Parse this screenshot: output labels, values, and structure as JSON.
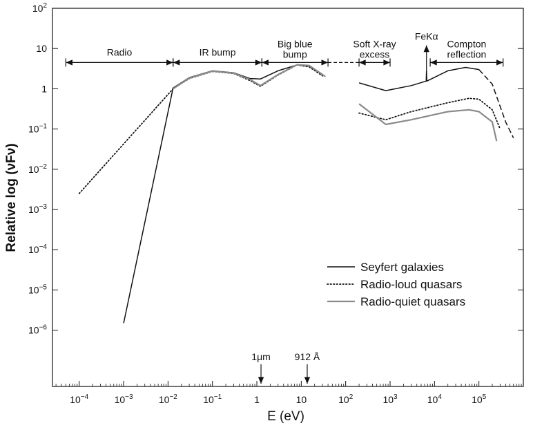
{
  "chart_data": {
    "type": "line",
    "xlabel": "E (eV)",
    "ylabel": "Relative log (νFν)",
    "xscale": "log",
    "yscale": "log",
    "xlim": [
      2.5e-05,
      1000000
    ],
    "ylim": [
      4e-08,
      100
    ],
    "grid": false,
    "legend_position": "bottom-right",
    "x_ticks": [
      {
        "value": 0.0001,
        "label": "10",
        "exp": "−4"
      },
      {
        "value": 0.001,
        "label": "10",
        "exp": "−3"
      },
      {
        "value": 0.01,
        "label": "10",
        "exp": "−2"
      },
      {
        "value": 0.1,
        "label": "10",
        "exp": "−1"
      },
      {
        "value": 1,
        "label": "1",
        "exp": ""
      },
      {
        "value": 10,
        "label": "10",
        "exp": ""
      },
      {
        "value": 100,
        "label": "10",
        "exp": "2"
      },
      {
        "value": 1000,
        "label": "10",
        "exp": "3"
      },
      {
        "value": 10000,
        "label": "10",
        "exp": "4"
      },
      {
        "value": 100000,
        "label": "10",
        "exp": "5"
      }
    ],
    "y_ticks": [
      {
        "value": 100,
        "label": "10",
        "exp": "2"
      },
      {
        "value": 10,
        "label": "10",
        "exp": ""
      },
      {
        "value": 1,
        "label": "1",
        "exp": ""
      },
      {
        "value": 0.1,
        "label": "10",
        "exp": "−1"
      },
      {
        "value": 0.01,
        "label": "10",
        "exp": "−2"
      },
      {
        "value": 0.001,
        "label": "10",
        "exp": "−3"
      },
      {
        "value": 0.0001,
        "label": "10",
        "exp": "−4"
      },
      {
        "value": 1e-05,
        "label": "10",
        "exp": "−5"
      },
      {
        "value": 1e-06,
        "label": "10",
        "exp": "−6"
      }
    ],
    "series": [
      {
        "name": "Seyfert galaxies",
        "style": "solid",
        "color": "#111111",
        "segments": [
          [
            [
              0.001,
              1.5e-06
            ],
            [
              0.013,
              1.05
            ],
            [
              0.03,
              1.9
            ],
            [
              0.1,
              2.8
            ],
            [
              0.3,
              2.5
            ],
            [
              0.7,
              1.8
            ],
            [
              1.2,
              1.75
            ],
            [
              3,
              2.8
            ],
            [
              8,
              3.9
            ],
            [
              15,
              3.7
            ],
            [
              30,
              2.3
            ]
          ],
          [
            [
              200,
              1.4
            ],
            [
              800,
              0.9
            ],
            [
              3000,
              1.2
            ],
            [
              6500,
              1.55
            ],
            [
              6600,
              2.8
            ],
            [
              6700,
              1.55
            ],
            [
              20000,
              2.8
            ],
            [
              50000,
              3.4
            ],
            [
              100000,
              3.0
            ]
          ],
          [
            [
              100000,
              3.0
            ],
            [
              200000,
              1.3
            ],
            [
              400000,
              0.15
            ],
            [
              600000,
              0.06
            ]
          ]
        ]
      },
      {
        "name": "Radio-loud quasars",
        "style": "dotted",
        "color": "#111111",
        "segments": [
          [
            [
              0.0001,
              0.0025
            ],
            [
              0.013,
              1.0
            ]
          ],
          [
            [
              0.013,
              1.0
            ],
            [
              0.03,
              1.8
            ],
            [
              0.1,
              2.7
            ],
            [
              0.3,
              2.4
            ],
            [
              0.7,
              1.6
            ],
            [
              1.2,
              1.15
            ],
            [
              3,
              2.2
            ],
            [
              8,
              3.9
            ],
            [
              15,
              3.5
            ],
            [
              30,
              2.1
            ]
          ],
          [
            [
              200,
              0.25
            ],
            [
              800,
              0.17
            ],
            [
              3000,
              0.27
            ],
            [
              20000,
              0.45
            ],
            [
              60000,
              0.58
            ],
            [
              100000,
              0.55
            ],
            [
              200000,
              0.3
            ],
            [
              300000,
              0.1
            ]
          ]
        ]
      },
      {
        "name": "Radio-quiet quasars",
        "style": "solid-gray",
        "color": "#8a8a8a",
        "segments": [
          [
            [
              0.013,
              1.0
            ],
            [
              0.03,
              1.85
            ],
            [
              0.1,
              2.75
            ],
            [
              0.3,
              2.45
            ],
            [
              0.7,
              1.7
            ],
            [
              1.2,
              1.2
            ],
            [
              3,
              2.25
            ],
            [
              8,
              3.95
            ],
            [
              15,
              3.8
            ],
            [
              35,
              2.0
            ]
          ],
          [
            [
              200,
              0.42
            ],
            [
              800,
              0.13
            ],
            [
              3000,
              0.17
            ],
            [
              20000,
              0.27
            ],
            [
              60000,
              0.3
            ],
            [
              100000,
              0.27
            ],
            [
              200000,
              0.15
            ],
            [
              250000,
              0.05
            ]
          ]
        ]
      }
    ],
    "connector": {
      "from": [
        40,
        4.5
      ],
      "to": [
        200,
        4.5
      ],
      "style": "dashed"
    },
    "regions": [
      {
        "label": "Radio",
        "label2": "",
        "x_from": 5e-05,
        "x_to": 0.013,
        "y": 4.5
      },
      {
        "label": "IR bump",
        "label2": "",
        "x_from": 0.013,
        "x_to": 1.3,
        "y": 4.5
      },
      {
        "label": "Big blue",
        "label2": "bump",
        "x_from": 1.3,
        "x_to": 40,
        "y": 4.5
      },
      {
        "label": "Soft X-ray",
        "label2": "excess",
        "x_from": 200,
        "x_to": 1000,
        "y": 4.5
      },
      {
        "label": "Compton",
        "label2": "reflection",
        "x_from": 8000,
        "x_to": 350000,
        "y": 4.5
      }
    ],
    "line_label": {
      "label": "FeKα",
      "x": 6600,
      "y_from": 1.6,
      "y_to": 12
    },
    "axis_markers": [
      {
        "label": "1μm",
        "x": 1.24
      },
      {
        "label": "912 Å",
        "x": 13.6
      }
    ],
    "legend": [
      {
        "label": "Seyfert galaxies",
        "style": "solid"
      },
      {
        "label": "Radio-loud quasars",
        "style": "dotted"
      },
      {
        "label": "Radio-quiet quasars",
        "style": "solid-gray"
      }
    ]
  }
}
